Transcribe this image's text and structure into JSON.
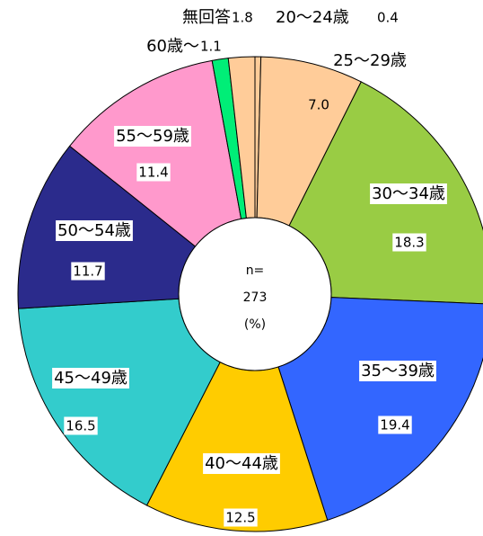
{
  "chart_data": {
    "type": "donut",
    "categories": [
      "20〜24歳",
      "25〜29歳",
      "30〜34歳",
      "35〜39歳",
      "40〜44歳",
      "45〜49歳",
      "50〜54歳",
      "55〜59歳",
      "60歳〜",
      "無回答"
    ],
    "values": [
      0.4,
      7.0,
      18.3,
      19.4,
      12.5,
      16.5,
      11.7,
      11.4,
      1.1,
      1.8
    ],
    "value_labels": [
      "0.4",
      "7.0",
      "18.3",
      "19.4",
      "12.5",
      "16.5",
      "11.7",
      "11.4",
      "1.1",
      "1.8"
    ],
    "colors": [
      "#ffcc99",
      "#ffcc99",
      "#99cc44",
      "#3366ff",
      "#ffcc00",
      "#33cccc",
      "#2b2b8c",
      "#ff99cc",
      "#00ee77",
      "#ffcc99"
    ],
    "center_text": [
      "n=",
      "273",
      "(%)"
    ]
  }
}
